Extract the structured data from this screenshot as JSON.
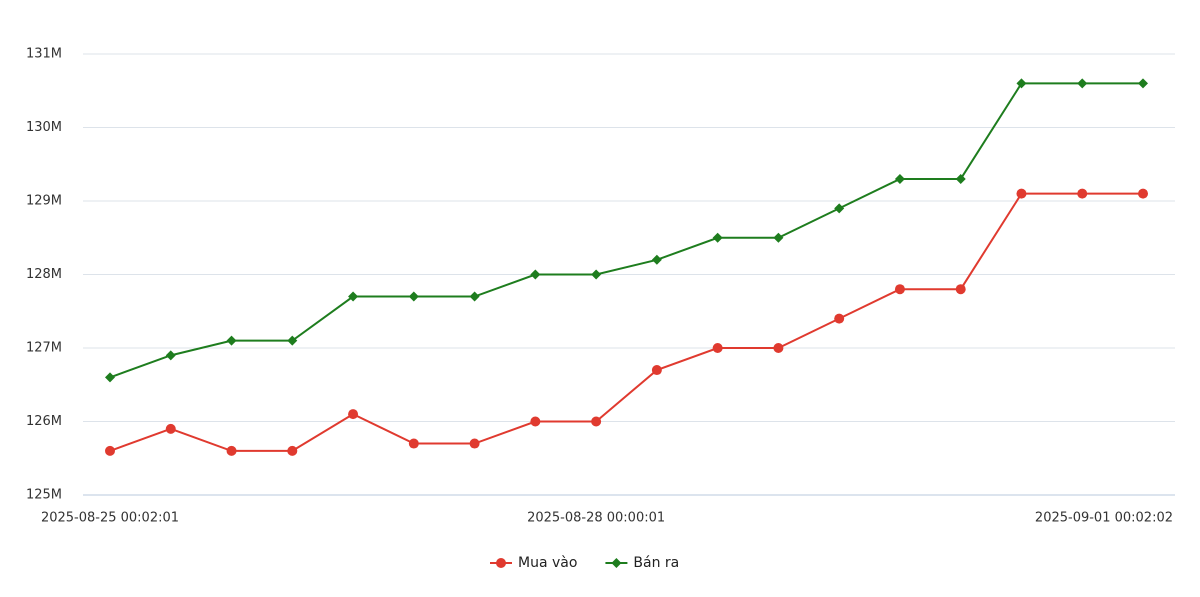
{
  "chart_data": {
    "type": "line",
    "categories": [
      "2025-08-25 00:02:01",
      null,
      null,
      null,
      null,
      null,
      null,
      null,
      "2025-08-28 00:00:01",
      null,
      null,
      null,
      null,
      null,
      null,
      null,
      null,
      "2025-09-01 00:02:02"
    ],
    "series": [
      {
        "name": "Mua vào",
        "color": "#e03a2f",
        "values": [
          125.6,
          125.9,
          125.6,
          125.6,
          126.1,
          125.7,
          125.7,
          126.0,
          126.0,
          126.7,
          127.0,
          127.0,
          127.4,
          127.8,
          127.8,
          129.1,
          129.1,
          129.1
        ]
      },
      {
        "name": "Bán ra",
        "color": "#1e7d1e",
        "values": [
          126.6,
          126.9,
          127.1,
          127.1,
          127.7,
          127.7,
          127.7,
          128.0,
          128.0,
          128.2,
          128.5,
          128.5,
          128.9,
          129.3,
          129.3,
          130.6,
          130.6,
          130.6
        ]
      }
    ],
    "ylim": [
      125,
      131
    ],
    "yticks": [
      {
        "value": 125,
        "label": "125M"
      },
      {
        "value": 126,
        "label": "126M"
      },
      {
        "value": 127,
        "label": "127M"
      },
      {
        "value": 128,
        "label": "128M"
      },
      {
        "value": 129,
        "label": "129M"
      },
      {
        "value": 130,
        "label": "130M"
      },
      {
        "value": 131,
        "label": "131M"
      }
    ],
    "grid": true
  }
}
